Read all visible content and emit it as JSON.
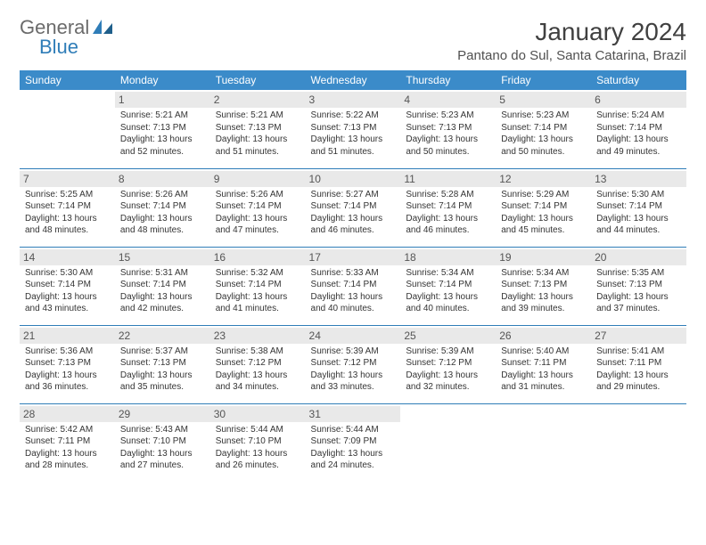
{
  "logo": {
    "word1": "General",
    "word2": "Blue"
  },
  "header": {
    "month_title": "January 2024",
    "location": "Pantano do Sul, Santa Catarina, Brazil"
  },
  "colors": {
    "header_bg": "#3b8bc9",
    "divider": "#2f7db8",
    "daynum_bg": "#e9e9e9",
    "page_bg": "#ffffff",
    "text": "#333333"
  },
  "dayNames": [
    "Sunday",
    "Monday",
    "Tuesday",
    "Wednesday",
    "Thursday",
    "Friday",
    "Saturday"
  ],
  "weeks": [
    [
      null,
      {
        "n": "1",
        "sr": "Sunrise: 5:21 AM",
        "ss": "Sunset: 7:13 PM",
        "d1": "Daylight: 13 hours",
        "d2": "and 52 minutes."
      },
      {
        "n": "2",
        "sr": "Sunrise: 5:21 AM",
        "ss": "Sunset: 7:13 PM",
        "d1": "Daylight: 13 hours",
        "d2": "and 51 minutes."
      },
      {
        "n": "3",
        "sr": "Sunrise: 5:22 AM",
        "ss": "Sunset: 7:13 PM",
        "d1": "Daylight: 13 hours",
        "d2": "and 51 minutes."
      },
      {
        "n": "4",
        "sr": "Sunrise: 5:23 AM",
        "ss": "Sunset: 7:13 PM",
        "d1": "Daylight: 13 hours",
        "d2": "and 50 minutes."
      },
      {
        "n": "5",
        "sr": "Sunrise: 5:23 AM",
        "ss": "Sunset: 7:14 PM",
        "d1": "Daylight: 13 hours",
        "d2": "and 50 minutes."
      },
      {
        "n": "6",
        "sr": "Sunrise: 5:24 AM",
        "ss": "Sunset: 7:14 PM",
        "d1": "Daylight: 13 hours",
        "d2": "and 49 minutes."
      }
    ],
    [
      {
        "n": "7",
        "sr": "Sunrise: 5:25 AM",
        "ss": "Sunset: 7:14 PM",
        "d1": "Daylight: 13 hours",
        "d2": "and 48 minutes."
      },
      {
        "n": "8",
        "sr": "Sunrise: 5:26 AM",
        "ss": "Sunset: 7:14 PM",
        "d1": "Daylight: 13 hours",
        "d2": "and 48 minutes."
      },
      {
        "n": "9",
        "sr": "Sunrise: 5:26 AM",
        "ss": "Sunset: 7:14 PM",
        "d1": "Daylight: 13 hours",
        "d2": "and 47 minutes."
      },
      {
        "n": "10",
        "sr": "Sunrise: 5:27 AM",
        "ss": "Sunset: 7:14 PM",
        "d1": "Daylight: 13 hours",
        "d2": "and 46 minutes."
      },
      {
        "n": "11",
        "sr": "Sunrise: 5:28 AM",
        "ss": "Sunset: 7:14 PM",
        "d1": "Daylight: 13 hours",
        "d2": "and 46 minutes."
      },
      {
        "n": "12",
        "sr": "Sunrise: 5:29 AM",
        "ss": "Sunset: 7:14 PM",
        "d1": "Daylight: 13 hours",
        "d2": "and 45 minutes."
      },
      {
        "n": "13",
        "sr": "Sunrise: 5:30 AM",
        "ss": "Sunset: 7:14 PM",
        "d1": "Daylight: 13 hours",
        "d2": "and 44 minutes."
      }
    ],
    [
      {
        "n": "14",
        "sr": "Sunrise: 5:30 AM",
        "ss": "Sunset: 7:14 PM",
        "d1": "Daylight: 13 hours",
        "d2": "and 43 minutes."
      },
      {
        "n": "15",
        "sr": "Sunrise: 5:31 AM",
        "ss": "Sunset: 7:14 PM",
        "d1": "Daylight: 13 hours",
        "d2": "and 42 minutes."
      },
      {
        "n": "16",
        "sr": "Sunrise: 5:32 AM",
        "ss": "Sunset: 7:14 PM",
        "d1": "Daylight: 13 hours",
        "d2": "and 41 minutes."
      },
      {
        "n": "17",
        "sr": "Sunrise: 5:33 AM",
        "ss": "Sunset: 7:14 PM",
        "d1": "Daylight: 13 hours",
        "d2": "and 40 minutes."
      },
      {
        "n": "18",
        "sr": "Sunrise: 5:34 AM",
        "ss": "Sunset: 7:14 PM",
        "d1": "Daylight: 13 hours",
        "d2": "and 40 minutes."
      },
      {
        "n": "19",
        "sr": "Sunrise: 5:34 AM",
        "ss": "Sunset: 7:13 PM",
        "d1": "Daylight: 13 hours",
        "d2": "and 39 minutes."
      },
      {
        "n": "20",
        "sr": "Sunrise: 5:35 AM",
        "ss": "Sunset: 7:13 PM",
        "d1": "Daylight: 13 hours",
        "d2": "and 37 minutes."
      }
    ],
    [
      {
        "n": "21",
        "sr": "Sunrise: 5:36 AM",
        "ss": "Sunset: 7:13 PM",
        "d1": "Daylight: 13 hours",
        "d2": "and 36 minutes."
      },
      {
        "n": "22",
        "sr": "Sunrise: 5:37 AM",
        "ss": "Sunset: 7:13 PM",
        "d1": "Daylight: 13 hours",
        "d2": "and 35 minutes."
      },
      {
        "n": "23",
        "sr": "Sunrise: 5:38 AM",
        "ss": "Sunset: 7:12 PM",
        "d1": "Daylight: 13 hours",
        "d2": "and 34 minutes."
      },
      {
        "n": "24",
        "sr": "Sunrise: 5:39 AM",
        "ss": "Sunset: 7:12 PM",
        "d1": "Daylight: 13 hours",
        "d2": "and 33 minutes."
      },
      {
        "n": "25",
        "sr": "Sunrise: 5:39 AM",
        "ss": "Sunset: 7:12 PM",
        "d1": "Daylight: 13 hours",
        "d2": "and 32 minutes."
      },
      {
        "n": "26",
        "sr": "Sunrise: 5:40 AM",
        "ss": "Sunset: 7:11 PM",
        "d1": "Daylight: 13 hours",
        "d2": "and 31 minutes."
      },
      {
        "n": "27",
        "sr": "Sunrise: 5:41 AM",
        "ss": "Sunset: 7:11 PM",
        "d1": "Daylight: 13 hours",
        "d2": "and 29 minutes."
      }
    ],
    [
      {
        "n": "28",
        "sr": "Sunrise: 5:42 AM",
        "ss": "Sunset: 7:11 PM",
        "d1": "Daylight: 13 hours",
        "d2": "and 28 minutes."
      },
      {
        "n": "29",
        "sr": "Sunrise: 5:43 AM",
        "ss": "Sunset: 7:10 PM",
        "d1": "Daylight: 13 hours",
        "d2": "and 27 minutes."
      },
      {
        "n": "30",
        "sr": "Sunrise: 5:44 AM",
        "ss": "Sunset: 7:10 PM",
        "d1": "Daylight: 13 hours",
        "d2": "and 26 minutes."
      },
      {
        "n": "31",
        "sr": "Sunrise: 5:44 AM",
        "ss": "Sunset: 7:09 PM",
        "d1": "Daylight: 13 hours",
        "d2": "and 24 minutes."
      },
      null,
      null,
      null
    ]
  ]
}
